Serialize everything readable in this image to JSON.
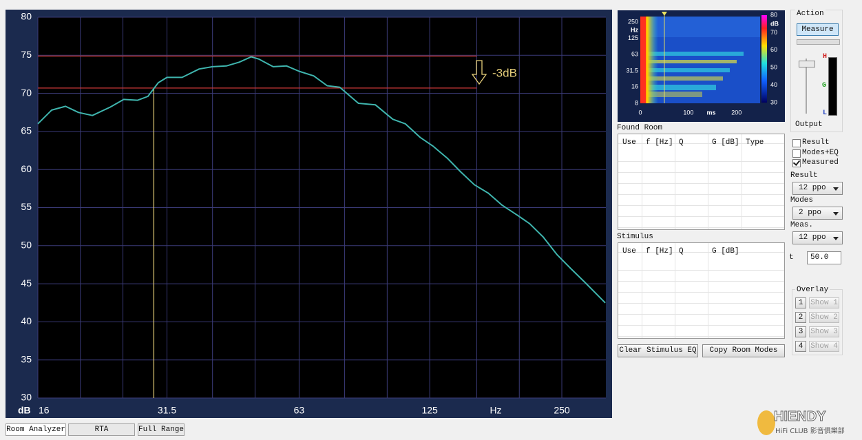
{
  "chart_data": {
    "type": "line",
    "x": [
      16,
      17.2,
      18.5,
      19.8,
      21.3,
      23.4,
      25.1,
      27,
      28.5,
      30.1,
      31.5,
      34.1,
      37.3,
      40,
      43,
      46,
      49,
      51,
      55,
      59,
      63,
      68,
      73,
      78,
      86,
      94,
      103,
      110,
      119,
      127,
      137,
      147,
      158,
      170,
      183,
      198,
      211,
      227,
      244,
      262,
      282,
      314
    ],
    "series": [
      {
        "color": "#3fb5ae",
        "values": [
          66,
          67.8,
          68.3,
          67.5,
          67.1,
          68.2,
          69.2,
          69.1,
          69.6,
          71.4,
          72.1,
          72.1,
          73.2,
          73.5,
          73.6,
          74.1,
          74.8,
          74.5,
          73.5,
          73.6,
          72.9,
          72.3,
          71.0,
          70.8,
          68.7,
          68.5,
          66.6,
          66.0,
          64.2,
          63.1,
          61.5,
          59.7,
          58.0,
          56.9,
          55.3,
          54.0,
          52.9,
          51.1,
          48.8,
          47.0,
          45.2,
          42.5
        ]
      }
    ],
    "xlim": [
      16,
      315
    ],
    "ylim": [
      30,
      80
    ],
    "log_x": true,
    "grid": true,
    "xticks": [
      16,
      31.5,
      63,
      125,
      250
    ],
    "x_minor_grid": [
      20,
      25,
      40,
      50,
      80,
      100,
      160,
      200
    ],
    "yticks": [
      30,
      35,
      40,
      45,
      50,
      55,
      60,
      65,
      70,
      75,
      80
    ],
    "x_unit": "Hz",
    "y_unit": "dB",
    "reference_lines": [
      {
        "y": 74.9,
        "x_end": 160,
        "color": "#d23a3a"
      },
      {
        "y": 70.7,
        "x_end": 160,
        "color": "#d23a3a"
      }
    ],
    "marker_line": {
      "x": 29.4,
      "y_top": 70.7,
      "color": "#e6cf7a"
    },
    "annotation": "-3dB"
  },
  "spectrogram": {
    "yticks": [
      8,
      16,
      31.5,
      63,
      125,
      250
    ],
    "ylim": [
      8,
      250
    ],
    "y_unit": "Hz",
    "xticks": [
      0,
      100,
      200
    ],
    "xlim": [
      0,
      249
    ],
    "x_unit": "ms",
    "cursor_ms": 50,
    "colorbar_ticks": [
      30,
      40,
      50,
      60,
      70,
      80
    ],
    "colorbar_lim": [
      30,
      80
    ],
    "colorbar_unit": "dB"
  },
  "ui": {
    "tabs": [
      "Room Analyzer",
      "RTA",
      "Full Range"
    ],
    "found_room": {
      "title": "Found Room",
      "columns": [
        "Use",
        "f [Hz]",
        "Q",
        "G [dB]",
        "Type"
      ]
    },
    "stimulus": {
      "title": "Stimulus",
      "columns": [
        "Use",
        "f [Hz]",
        "Q",
        "G [dB]"
      ]
    },
    "action": {
      "title": "Action",
      "button": "Measure",
      "meter_labels": [
        "H",
        "G",
        "L"
      ],
      "output": "Output"
    },
    "checkboxes": [
      {
        "label": "Result",
        "checked": false
      },
      {
        "label": "Modes+EQ",
        "checked": false
      },
      {
        "label": "Measured",
        "checked": true
      }
    ],
    "dropdowns": [
      {
        "label": "Result",
        "value": "12 ppo"
      },
      {
        "label": "Modes",
        "value": "2 ppo"
      },
      {
        "label": "Meas.",
        "value": "12 ppo"
      }
    ],
    "t": {
      "label": "t",
      "value": "50.0"
    },
    "overlay": {
      "title": "Overlay",
      "items": [
        {
          "number": "1",
          "button": "Show 1"
        },
        {
          "number": "2",
          "button": "Show 2"
        },
        {
          "number": "3",
          "button": "Show 3"
        },
        {
          "number": "4",
          "button": "Show 4"
        }
      ]
    },
    "buttons": [
      "Clear Stimulus EQ",
      "Copy Room Modes"
    ],
    "watermark": {
      "brand": "HIENDY",
      "sub": "HiFi CLUB 影音俱樂部"
    }
  }
}
